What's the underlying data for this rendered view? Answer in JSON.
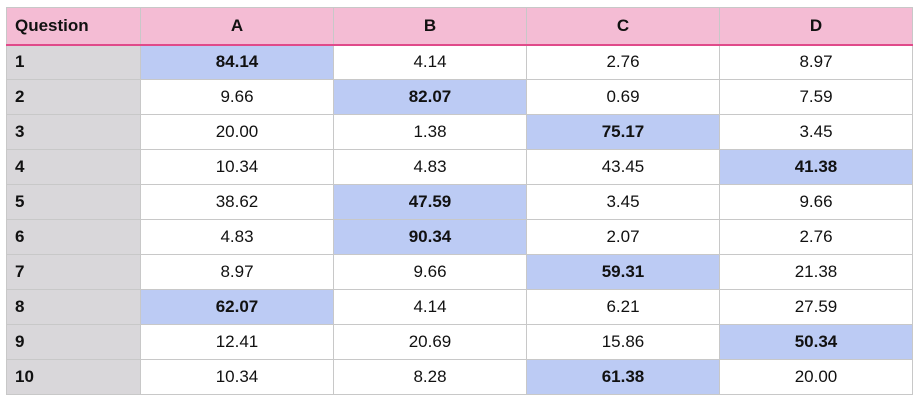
{
  "chart_data": {
    "type": "table",
    "columns": [
      "Question",
      "A",
      "B",
      "C",
      "D"
    ],
    "rows": [
      {
        "question": "1",
        "values": [
          "84.14",
          "4.14",
          "2.76",
          "8.97"
        ],
        "highlight": 0
      },
      {
        "question": "2",
        "values": [
          "9.66",
          "82.07",
          "0.69",
          "7.59"
        ],
        "highlight": 1
      },
      {
        "question": "3",
        "values": [
          "20.00",
          "1.38",
          "75.17",
          "3.45"
        ],
        "highlight": 2
      },
      {
        "question": "4",
        "values": [
          "10.34",
          "4.83",
          "43.45",
          "41.38"
        ],
        "highlight": 3
      },
      {
        "question": "5",
        "values": [
          "38.62",
          "47.59",
          "3.45",
          "9.66"
        ],
        "highlight": 1
      },
      {
        "question": "6",
        "values": [
          "4.83",
          "90.34",
          "2.07",
          "2.76"
        ],
        "highlight": 1
      },
      {
        "question": "7",
        "values": [
          "8.97",
          "9.66",
          "59.31",
          "21.38"
        ],
        "highlight": 2
      },
      {
        "question": "8",
        "values": [
          "62.07",
          "4.14",
          "6.21",
          "27.59"
        ],
        "highlight": 0
      },
      {
        "question": "9",
        "values": [
          "12.41",
          "20.69",
          "15.86",
          "50.34"
        ],
        "highlight": 3
      },
      {
        "question": "10",
        "values": [
          "10.34",
          "8.28",
          "61.38",
          "20.00"
        ],
        "highlight": 2
      }
    ],
    "colors": {
      "header_bg": "#f4bcd4",
      "header_border": "#e04a8a",
      "question_col_bg": "#d9d7da",
      "highlight_bg": "#bccbf4",
      "cell_bg": "#ffffff",
      "grid": "#c8c8c8"
    }
  }
}
